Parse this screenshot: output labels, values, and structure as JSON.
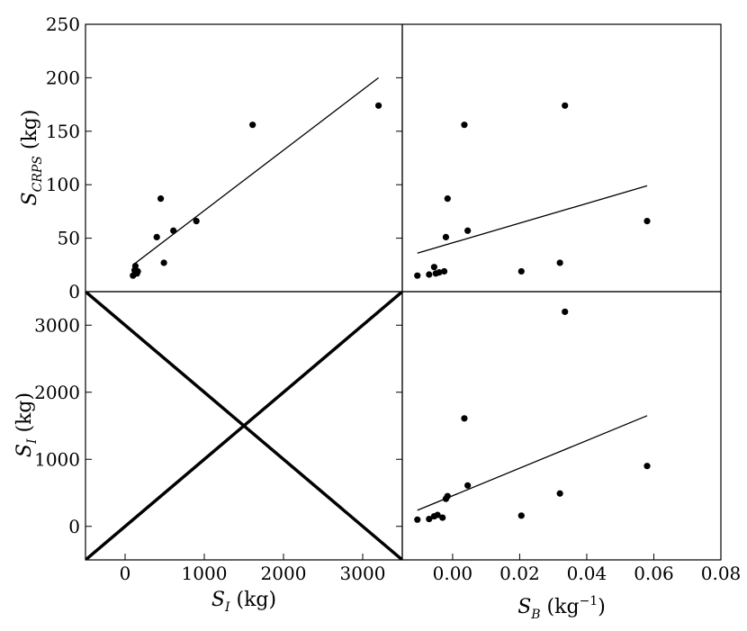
{
  "chart_data": {
    "type": "scatter",
    "figure": "scatter-plot-matrix",
    "panels": [
      {
        "id": "top-left",
        "type": "scatter",
        "x_var": "S_I",
        "y_var": "S_CRPS",
        "xlim": [
          -500,
          3500
        ],
        "ylim": [
          0,
          250
        ],
        "points": [
          {
            "x": 100,
            "y": 15
          },
          {
            "x": 120,
            "y": 20
          },
          {
            "x": 130,
            "y": 24
          },
          {
            "x": 150,
            "y": 17
          },
          {
            "x": 160,
            "y": 19
          },
          {
            "x": 400,
            "y": 51
          },
          {
            "x": 450,
            "y": 87
          },
          {
            "x": 490,
            "y": 27
          },
          {
            "x": 610,
            "y": 57
          },
          {
            "x": 900,
            "y": 66
          },
          {
            "x": 1610,
            "y": 156
          },
          {
            "x": 3200,
            "y": 174
          }
        ],
        "fit_line": {
          "x": [
            100,
            3200
          ],
          "y": [
            25,
            200
          ]
        }
      },
      {
        "id": "top-right",
        "type": "scatter",
        "x_var": "S_B",
        "y_var": "S_CRPS",
        "xlim": [
          -0.015,
          0.08
        ],
        "ylim": [
          0,
          250
        ],
        "points": [
          {
            "x": -0.0105,
            "y": 15
          },
          {
            "x": -0.007,
            "y": 16
          },
          {
            "x": -0.0055,
            "y": 23
          },
          {
            "x": -0.005,
            "y": 17
          },
          {
            "x": -0.004,
            "y": 18
          },
          {
            "x": -0.0025,
            "y": 19
          },
          {
            "x": -0.002,
            "y": 51
          },
          {
            "x": -0.0015,
            "y": 87
          },
          {
            "x": 0.0035,
            "y": 156
          },
          {
            "x": 0.0045,
            "y": 57
          },
          {
            "x": 0.0205,
            "y": 19
          },
          {
            "x": 0.032,
            "y": 27
          },
          {
            "x": 0.0335,
            "y": 174
          },
          {
            "x": 0.058,
            "y": 66
          }
        ],
        "fit_line": {
          "x": [
            -0.0105,
            0.058
          ],
          "y": [
            36,
            99
          ]
        }
      },
      {
        "id": "bottom-left",
        "type": "line",
        "x_var": "S_I",
        "y_var": "S_I",
        "xlim": [
          -500,
          3500
        ],
        "ylim": [
          -500,
          3500
        ],
        "lines": [
          {
            "x": [
              -500,
              3500
            ],
            "y": [
              -500,
              3500
            ]
          },
          {
            "x": [
              -500,
              3500
            ],
            "y": [
              3500,
              -500
            ]
          }
        ]
      },
      {
        "id": "bottom-right",
        "type": "scatter",
        "x_var": "S_B",
        "y_var": "S_I",
        "xlim": [
          -0.015,
          0.08
        ],
        "ylim": [
          -500,
          3500
        ],
        "points": [
          {
            "x": -0.0105,
            "y": 100
          },
          {
            "x": -0.007,
            "y": 110
          },
          {
            "x": -0.0055,
            "y": 150
          },
          {
            "x": -0.0045,
            "y": 170
          },
          {
            "x": -0.003,
            "y": 130
          },
          {
            "x": -0.002,
            "y": 410
          },
          {
            "x": -0.0015,
            "y": 450
          },
          {
            "x": 0.0035,
            "y": 1610
          },
          {
            "x": 0.0045,
            "y": 610
          },
          {
            "x": 0.0205,
            "y": 160
          },
          {
            "x": 0.032,
            "y": 490
          },
          {
            "x": 0.0335,
            "y": 3200
          },
          {
            "x": 0.058,
            "y": 900
          }
        ],
        "fit_line": {
          "x": [
            -0.0105,
            0.058
          ],
          "y": [
            240,
            1650
          ]
        }
      }
    ],
    "ticks": {
      "top_y": [
        "0",
        "50",
        "100",
        "150",
        "200",
        "250"
      ],
      "top_y_values": [
        0,
        50,
        100,
        150,
        200,
        250
      ],
      "bottom_y": [
        "0",
        "1000",
        "2000",
        "3000"
      ],
      "bottom_y_values": [
        0,
        1000,
        2000,
        3000
      ],
      "bottom_left_x": [
        "0",
        "1000",
        "2000",
        "3000"
      ],
      "bottom_left_x_values": [
        0,
        1000,
        2000,
        3000
      ],
      "bottom_right_x": [
        "0.00",
        "0.02",
        "0.04",
        "0.06",
        "0.08"
      ],
      "bottom_right_x_values": [
        0.0,
        0.02,
        0.04,
        0.06,
        0.08
      ]
    },
    "labels": {
      "top_ylabel": {
        "base": "S",
        "sub": "CRPS",
        "unit": " (kg)"
      },
      "bottom_ylabel": {
        "base": "S",
        "sub": "I",
        "unit": " (kg)"
      },
      "left_xlabel": {
        "base": "S",
        "sub": "I",
        "unit": " (kg)"
      },
      "right_xlabel": {
        "base": "S",
        "sub": "B",
        "unit": " (kg",
        "sup": "−1",
        "unit_end": ")"
      }
    }
  }
}
